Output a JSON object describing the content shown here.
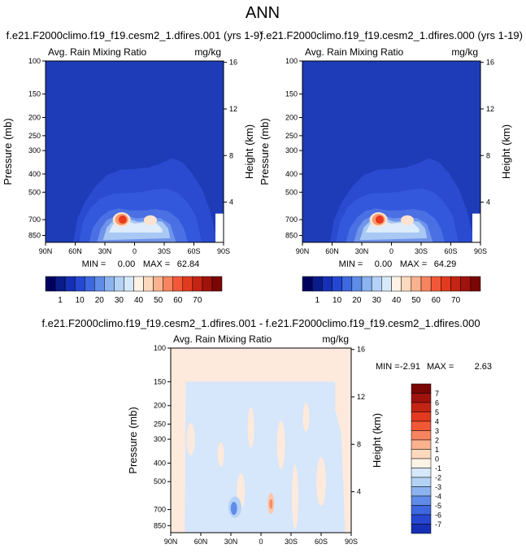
{
  "title": "ANN",
  "colors": {
    "background_field": "#1838b8",
    "positive_scale": [
      "#fff3e6",
      "#fdd9bd",
      "#fbb28e",
      "#f7845f",
      "#f25837",
      "#e33a1f",
      "#c42414",
      "#a0120c",
      "#7a0606"
    ],
    "negative_scale": [
      "#d7e8fa",
      "#b4d2f6",
      "#8cb3f0",
      "#5f8ce8",
      "#3e68e0",
      "#2647d2",
      "#1630b5",
      "#0a1b8a"
    ]
  },
  "chart_data": [
    {
      "type": "heatmap",
      "id": "panel1",
      "title": "f.e21.F2000climo.f19_f19.cesm2_1.dfires.001 (yrs 1-9)",
      "variable_label": "Avg. Rain Mixing Ratio",
      "units_label": "mg/kg",
      "ylabel": "Pressure (mb)",
      "ylabel_right": "Height (km)",
      "x_ticks": [
        "90N",
        "60N",
        "30N",
        "0",
        "30S",
        "60S",
        "90S"
      ],
      "x_values": [
        90,
        60,
        30,
        0,
        -30,
        -60,
        -90
      ],
      "y_ticks": [
        "100",
        "150",
        "200",
        "250",
        "300",
        "400",
        "500",
        "700",
        "850"
      ],
      "y_values": [
        100,
        150,
        200,
        250,
        300,
        400,
        500,
        700,
        850
      ],
      "ylim": [
        100,
        925
      ],
      "height_ticks": [
        "16",
        "12",
        "8",
        "4"
      ],
      "height_values": [
        16,
        12,
        8,
        4
      ],
      "min_label": "MIN =",
      "min_value": "0.00",
      "max_label": "MAX =",
      "max_value": "62.84",
      "peak": {
        "lat": 12,
        "pressure": 700,
        "value": 62.84
      }
    },
    {
      "type": "heatmap",
      "id": "panel2",
      "title": "f.e21.F2000climo.f19_f19.cesm2_1.dfires.000 (yrs 1-19)",
      "variable_label": "Avg. Rain Mixing Ratio",
      "units_label": "mg/kg",
      "ylabel": "Pressure (mb)",
      "ylabel_right": "Height (km)",
      "x_ticks": [
        "90N",
        "60N",
        "30N",
        "0",
        "30S",
        "60S",
        "90S"
      ],
      "x_values": [
        90,
        60,
        30,
        0,
        -30,
        -60,
        -90
      ],
      "y_ticks": [
        "100",
        "150",
        "200",
        "250",
        "300",
        "400",
        "500",
        "700",
        "850"
      ],
      "y_values": [
        100,
        150,
        200,
        250,
        300,
        400,
        500,
        700,
        850
      ],
      "ylim": [
        100,
        925
      ],
      "height_ticks": [
        "16",
        "12",
        "8",
        "4"
      ],
      "height_values": [
        16,
        12,
        8,
        4
      ],
      "min_label": "MIN =",
      "min_value": "0.00",
      "max_label": "MAX =",
      "max_value": "64.29",
      "peak": {
        "lat": 12,
        "pressure": 700,
        "value": 64.29
      }
    },
    {
      "type": "heatmap",
      "id": "panel3",
      "title": "f.e21.F2000climo.f19_f19.cesm2_1.dfires.001 - f.e21.F2000climo.f19_f19.cesm2_1.dfires.000",
      "variable_label": "Avg. Rain Mixing Ratio",
      "units_label": "mg/kg",
      "ylabel": "Pressure (mb)",
      "ylabel_right": "Height (km)",
      "x_ticks": [
        "90N",
        "60N",
        "30N",
        "0",
        "30S",
        "60S",
        "90S"
      ],
      "x_values": [
        90,
        60,
        30,
        0,
        -30,
        -60,
        -90
      ],
      "y_ticks": [
        "100",
        "150",
        "200",
        "250",
        "300",
        "400",
        "500",
        "700",
        "850"
      ],
      "y_values": [
        100,
        150,
        200,
        250,
        300,
        400,
        500,
        700,
        850
      ],
      "ylim": [
        100,
        925
      ],
      "height_ticks": [
        "16",
        "12",
        "8",
        "4"
      ],
      "height_values": [
        16,
        12,
        8,
        4
      ],
      "min_label": "MIN =",
      "min_value": "-2.91",
      "max_label": "MAX =",
      "max_value": "2.63"
    }
  ],
  "colorbar_abs": {
    "orientation": "horizontal",
    "labels": [
      "1",
      "10",
      "20",
      "30",
      "40",
      "50",
      "60",
      "70"
    ],
    "colors": [
      "#00005e",
      "#0a1b8a",
      "#1630b5",
      "#2647d2",
      "#3e68e0",
      "#5f8ce8",
      "#8cb3f0",
      "#b4d2f6",
      "#d7e8fa",
      "#fff3e6",
      "#fdd9bd",
      "#fbb28e",
      "#f7845f",
      "#f25837",
      "#e33a1f",
      "#c42414",
      "#a0120c",
      "#7a0606"
    ]
  },
  "colorbar_diff": {
    "orientation": "vertical",
    "labels": [
      "7",
      "6",
      "5",
      "4",
      "3",
      "2",
      "1",
      "0",
      "-1",
      "-2",
      "-3",
      "-4",
      "-5",
      "-6",
      "-7"
    ],
    "colors": [
      "#7a0606",
      "#a0120c",
      "#c42414",
      "#e33a1f",
      "#f25837",
      "#f7845f",
      "#fbb28e",
      "#fdd9bd",
      "#fff3e6",
      "#d7e8fa",
      "#b4d2f6",
      "#8cb3f0",
      "#5f8ce8",
      "#3e68e0",
      "#2647d2",
      "#1630b5"
    ]
  }
}
